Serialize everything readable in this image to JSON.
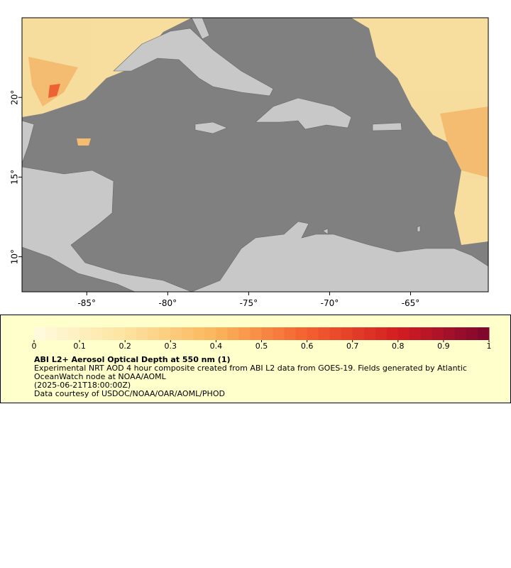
{
  "chart_data": {
    "type": "map",
    "xlim": [
      -89,
      -60.2
    ],
    "ylim": [
      7.8,
      25
    ],
    "xticks": [
      {
        "value": -85,
        "label": "-85°"
      },
      {
        "value": -80,
        "label": "-80°"
      },
      {
        "value": -75,
        "label": "-75°"
      },
      {
        "value": -70,
        "label": "-70°"
      },
      {
        "value": -65,
        "label": "-65°"
      }
    ],
    "yticks": [
      {
        "value": 10,
        "label": "10°"
      },
      {
        "value": 15,
        "label": "15°"
      },
      {
        "value": 20,
        "label": "20°"
      }
    ],
    "colorbar": {
      "clim": [
        0,
        1
      ],
      "ticks": [
        0,
        0.1,
        0.2,
        0.3,
        0.4,
        0.5,
        0.6,
        0.7,
        0.8,
        0.9,
        1
      ],
      "colors": [
        "#fffbe0",
        "#fde3a0",
        "#fbb55a",
        "#f4602f",
        "#d41d22",
        "#7d0530"
      ]
    },
    "legend": {
      "title": "ABI L2+ Aerosol Optical Depth at 550 nm (1)",
      "description": "Experimental NRT AOD 4 hour composite created from ABI L2 data from GOES-19. Fields generated by Atlantic OceanWatch node at NOAA/AOML",
      "time": "(2025-06-21T18:00:00Z)",
      "credit": "Data courtesy of USDOC/NOAA/OAR/AOML/PHOD"
    }
  }
}
